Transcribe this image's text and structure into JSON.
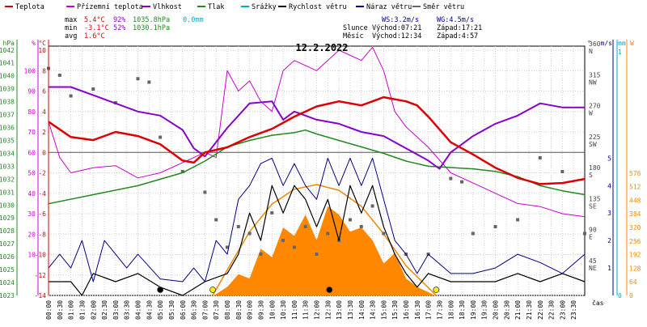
{
  "chart_data": {
    "type": "line",
    "title": "12.2.2022",
    "time_label": "čas",
    "legend": [
      {
        "label": "Teplota",
        "color": "#dd0000"
      },
      {
        "label": "Přízemní teplota",
        "color": "#cc00cc"
      },
      {
        "label": "Vlhkost",
        "color": "#8800cc"
      },
      {
        "label": "Tlak",
        "color": "#228822"
      },
      {
        "label": "Srážky",
        "color": "#00aacc"
      },
      {
        "label": "Rychlost větru",
        "color": "#000000"
      },
      {
        "label": "Náraz větru",
        "color": "#000088"
      },
      {
        "label": "Směr větru",
        "color": "#666666"
      }
    ],
    "stats": {
      "max_label": "max",
      "max_temp": "5.4°C",
      "max_hum": "92%",
      "max_press": "1035.8hPa",
      "max_rain": "0.0mm",
      "min_label": "min",
      "min_temp": "-3.1°C",
      "min_hum": "52%",
      "min_press": "1030.1hPa",
      "avg_label": "avg",
      "avg_temp": "1.6°C"
    },
    "wind_info": {
      "ws": "WS:3.2m/s",
      "wg": "WG:4.5m/s"
    },
    "sun_info": {
      "label": "Slunce",
      "rise": "Východ:07:21",
      "set": "Západ:17:21"
    },
    "moon_info": {
      "label": "Měsíc",
      "rise": "Východ:12:34",
      "set": "Západ:4:57"
    },
    "axes": {
      "hpa": {
        "label": "hPa",
        "ticks": [
          1023,
          1024,
          1025,
          1026,
          1027,
          1028,
          1029,
          1030,
          1031,
          1032,
          1033,
          1034,
          1035,
          1036,
          1037,
          1038,
          1039,
          1040,
          1041,
          1042
        ]
      },
      "pct": {
        "label": "%",
        "ticks": [
          10,
          20,
          30,
          40,
          50,
          60,
          70,
          80,
          90,
          100
        ]
      },
      "degc": {
        "label": "°C",
        "ticks": [
          -14,
          -12,
          -10,
          -8,
          -6,
          -4,
          -2,
          0,
          2,
          4,
          6,
          8,
          10
        ],
        "range": [
          -14,
          10.4
        ]
      },
      "deg": {
        "label": "°",
        "ticks": [
          {
            "v": 45,
            "l": "45",
            "c": "NE"
          },
          {
            "v": 90,
            "l": "90",
            "c": "E"
          },
          {
            "v": 135,
            "l": "135",
            "c": "SE"
          },
          {
            "v": 180,
            "l": "180",
            "c": "S"
          },
          {
            "v": 225,
            "l": "225",
            "c": "SW"
          },
          {
            "v": 270,
            "l": "270",
            "c": "W"
          },
          {
            "v": 315,
            "l": "315",
            "c": "NW"
          },
          {
            "v": 360,
            "l": "360",
            "c": "N"
          }
        ]
      },
      "ms": {
        "label": "m/s",
        "ticks": [
          1,
          2,
          3,
          4,
          5
        ]
      },
      "mm": {
        "label": "mm",
        "ticks": [
          "0",
          "1"
        ]
      },
      "w": {
        "label": "W",
        "ticks": [
          0,
          64,
          128,
          192,
          256,
          320,
          384,
          448,
          512,
          576
        ]
      },
      "time_ticks": [
        "00:00",
        "00:30",
        "01:00",
        "01:30",
        "02:00",
        "02:30",
        "03:00",
        "03:30",
        "04:00",
        "04:30",
        "05:00",
        "05:30",
        "06:00",
        "06:30",
        "07:00",
        "07:30",
        "08:00",
        "08:30",
        "09:00",
        "09:30",
        "10:00",
        "10:30",
        "11:00",
        "11:30",
        "12:00",
        "12:30",
        "13:00",
        "13:30",
        "14:00",
        "14:30",
        "15:00",
        "15:30",
        "16:00",
        "16:30",
        "17:00",
        "17:30",
        "18:00",
        "18:30",
        "19:00",
        "19:30",
        "20:00",
        "20:30",
        "21:00",
        "21:30",
        "22:00",
        "22:30",
        "23:00",
        "23:30"
      ]
    },
    "series": [
      {
        "name": "Teplota",
        "unit": "°C",
        "color": "#dd0000",
        "points": [
          [
            0,
            3
          ],
          [
            1,
            1.5
          ],
          [
            2,
            1.2
          ],
          [
            3,
            2
          ],
          [
            4,
            1.6
          ],
          [
            5,
            0.8
          ],
          [
            6,
            -0.8
          ],
          [
            6.5,
            -1
          ],
          [
            7,
            0
          ],
          [
            8,
            0.5
          ],
          [
            9,
            1.5
          ],
          [
            10,
            2.3
          ],
          [
            11,
            3.5
          ],
          [
            12,
            4.5
          ],
          [
            13,
            5
          ],
          [
            14,
            4.6
          ],
          [
            14.5,
            5
          ],
          [
            15,
            5.4
          ],
          [
            16,
            5
          ],
          [
            16.5,
            4.6
          ],
          [
            17,
            3.5
          ],
          [
            18,
            1
          ],
          [
            19,
            -0.2
          ],
          [
            20,
            -1.5
          ],
          [
            21,
            -2.5
          ],
          [
            22,
            -3.1
          ],
          [
            23,
            -3
          ],
          [
            24,
            -2.6
          ]
        ]
      },
      {
        "name": "Přízemní teplota",
        "unit": "°C",
        "color": "#cc00cc",
        "points": [
          [
            0,
            3
          ],
          [
            0.5,
            -0.5
          ],
          [
            1,
            -2
          ],
          [
            2,
            -1.5
          ],
          [
            3,
            -1.3
          ],
          [
            4,
            -2.5
          ],
          [
            5,
            -2
          ],
          [
            6,
            -1
          ],
          [
            7,
            0
          ],
          [
            7.5,
            -0.5
          ],
          [
            8,
            8
          ],
          [
            8.5,
            6
          ],
          [
            9,
            7
          ],
          [
            9.5,
            5
          ],
          [
            10,
            4
          ],
          [
            10.5,
            8
          ],
          [
            11,
            9
          ],
          [
            12,
            8
          ],
          [
            13,
            10
          ],
          [
            14,
            9
          ],
          [
            14.5,
            10.3
          ],
          [
            15,
            8
          ],
          [
            15.5,
            4
          ],
          [
            16,
            2.5
          ],
          [
            17,
            0.5
          ],
          [
            18,
            -2
          ],
          [
            19,
            -3
          ],
          [
            20,
            -4
          ],
          [
            21,
            -5
          ],
          [
            22,
            -5.3
          ],
          [
            23,
            -6
          ],
          [
            24,
            -6.3
          ]
        ]
      },
      {
        "name": "Vlhkost",
        "unit": "%",
        "color": "#8800cc",
        "points": [
          [
            0,
            92
          ],
          [
            1,
            92
          ],
          [
            2,
            88
          ],
          [
            3,
            84
          ],
          [
            4,
            80
          ],
          [
            5,
            78
          ],
          [
            6,
            71
          ],
          [
            6.5,
            62
          ],
          [
            7,
            58
          ],
          [
            8,
            72
          ],
          [
            9,
            84
          ],
          [
            10,
            85
          ],
          [
            10.5,
            76
          ],
          [
            11,
            80
          ],
          [
            12,
            76
          ],
          [
            13,
            74
          ],
          [
            14,
            70
          ],
          [
            15,
            68
          ],
          [
            16,
            62
          ],
          [
            17,
            56
          ],
          [
            17.5,
            52
          ],
          [
            18,
            60
          ],
          [
            19,
            68
          ],
          [
            20,
            74
          ],
          [
            21,
            78
          ],
          [
            22,
            84
          ],
          [
            23,
            82
          ],
          [
            24,
            82
          ]
        ]
      },
      {
        "name": "Tlak",
        "unit": "hPa",
        "color": "#228822",
        "points": [
          [
            0,
            1030.1
          ],
          [
            2,
            1030.8
          ],
          [
            4,
            1031.5
          ],
          [
            6,
            1032.5
          ],
          [
            7,
            1033.4
          ],
          [
            8,
            1034.5
          ],
          [
            9,
            1035
          ],
          [
            10,
            1035.4
          ],
          [
            11,
            1035.6
          ],
          [
            11.5,
            1035.8
          ],
          [
            12,
            1035.5
          ],
          [
            13,
            1035
          ],
          [
            14,
            1034.5
          ],
          [
            15,
            1034
          ],
          [
            16,
            1033.4
          ],
          [
            17,
            1033
          ],
          [
            18,
            1032.9
          ],
          [
            19,
            1032.8
          ],
          [
            20,
            1032.6
          ],
          [
            21,
            1032.2
          ],
          [
            22,
            1031.5
          ],
          [
            23,
            1031.1
          ],
          [
            24,
            1030.8
          ]
        ]
      },
      {
        "name": "Rychlost větru",
        "unit": "m/s",
        "color": "#000000",
        "points": [
          [
            0,
            0.5
          ],
          [
            1,
            0.5
          ],
          [
            1.5,
            0
          ],
          [
            2,
            0.8
          ],
          [
            3,
            0.5
          ],
          [
            4,
            0.8
          ],
          [
            5,
            0.3
          ],
          [
            6,
            0
          ],
          [
            7,
            0.5
          ],
          [
            8,
            0.8
          ],
          [
            8.5,
            1.5
          ],
          [
            9,
            3
          ],
          [
            9.5,
            2
          ],
          [
            10,
            4
          ],
          [
            10.5,
            3
          ],
          [
            11,
            4
          ],
          [
            11.5,
            3.5
          ],
          [
            12,
            2.5
          ],
          [
            12.5,
            3.5
          ],
          [
            13,
            2
          ],
          [
            13.5,
            4
          ],
          [
            14,
            3
          ],
          [
            14.5,
            4
          ],
          [
            15,
            2.5
          ],
          [
            15.5,
            1.5
          ],
          [
            16,
            0.8
          ],
          [
            16.5,
            0.3
          ],
          [
            17,
            0.8
          ],
          [
            18,
            0.5
          ],
          [
            19,
            0.5
          ],
          [
            20,
            0.5
          ],
          [
            21,
            0.8
          ],
          [
            22,
            0.5
          ],
          [
            23,
            0.8
          ],
          [
            24,
            0.5
          ]
        ]
      },
      {
        "name": "Náraz větru",
        "unit": "m/s",
        "color": "#000088",
        "points": [
          [
            0,
            1
          ],
          [
            0.5,
            1.5
          ],
          [
            1,
            1
          ],
          [
            1.5,
            2
          ],
          [
            2,
            0.5
          ],
          [
            2.5,
            2
          ],
          [
            3,
            1.5
          ],
          [
            3.5,
            1
          ],
          [
            4,
            1.5
          ],
          [
            5,
            0.6
          ],
          [
            6,
            0.5
          ],
          [
            6.5,
            1
          ],
          [
            7,
            0.5
          ],
          [
            7.5,
            2
          ],
          [
            8,
            1.5
          ],
          [
            8.5,
            3.5
          ],
          [
            9,
            4
          ],
          [
            9.5,
            4.8
          ],
          [
            10,
            5
          ],
          [
            10.5,
            4
          ],
          [
            11,
            4.8
          ],
          [
            11.5,
            4
          ],
          [
            12,
            3.5
          ],
          [
            12.5,
            5
          ],
          [
            13,
            4
          ],
          [
            13.5,
            5
          ],
          [
            14,
            4
          ],
          [
            14.5,
            5
          ],
          [
            15,
            3.5
          ],
          [
            15.5,
            2
          ],
          [
            16,
            1.5
          ],
          [
            16.5,
            0.8
          ],
          [
            17,
            1.5
          ],
          [
            18,
            0.8
          ],
          [
            19,
            0.8
          ],
          [
            20,
            1
          ],
          [
            21,
            1.5
          ],
          [
            22,
            1.2
          ],
          [
            23,
            0.8
          ],
          [
            24,
            1.5
          ]
        ]
      },
      {
        "name": "Směr větru",
        "unit": "°",
        "color": "#666666",
        "points": [
          [
            0,
            330
          ],
          [
            0.5,
            320
          ],
          [
            1,
            290
          ],
          [
            2,
            300
          ],
          [
            3,
            280
          ],
          [
            4,
            315
          ],
          [
            4.5,
            310
          ],
          [
            5,
            230
          ],
          [
            6,
            180
          ],
          [
            7,
            150
          ],
          [
            7.5,
            110
          ],
          [
            8,
            70
          ],
          [
            8.5,
            100
          ],
          [
            9,
            90
          ],
          [
            9.5,
            60
          ],
          [
            10,
            120
          ],
          [
            10.5,
            80
          ],
          [
            11,
            70
          ],
          [
            11.5,
            100
          ],
          [
            12,
            60
          ],
          [
            12.5,
            90
          ],
          [
            13,
            80
          ],
          [
            13.5,
            110
          ],
          [
            14,
            100
          ],
          [
            14.5,
            130
          ],
          [
            15,
            90
          ],
          [
            16,
            60
          ],
          [
            17,
            60
          ],
          [
            18,
            170
          ],
          [
            18.5,
            165
          ],
          [
            19,
            90
          ],
          [
            20,
            100
          ],
          [
            21,
            110
          ],
          [
            22,
            200
          ],
          [
            23,
            180
          ],
          [
            24,
            90
          ]
        ]
      }
    ],
    "solar_radiation": {
      "name": "Sluneční záření",
      "unit": "W",
      "color": "#ff8800",
      "points": [
        [
          7.4,
          0
        ],
        [
          8,
          40
        ],
        [
          8.5,
          100
        ],
        [
          9,
          80
        ],
        [
          9.5,
          220
        ],
        [
          10,
          180
        ],
        [
          10.5,
          320
        ],
        [
          11,
          280
        ],
        [
          11.5,
          380
        ],
        [
          12,
          260
        ],
        [
          12.5,
          420
        ],
        [
          13,
          380
        ],
        [
          13.5,
          300
        ],
        [
          14,
          320
        ],
        [
          14.5,
          260
        ],
        [
          15,
          150
        ],
        [
          15.5,
          200
        ],
        [
          16,
          80
        ],
        [
          16.5,
          40
        ],
        [
          17.3,
          0
        ]
      ]
    },
    "theoretical_radiation": {
      "unit": "W",
      "color": "#ee8800",
      "points": [
        [
          7.35,
          0
        ],
        [
          8,
          120
        ],
        [
          9,
          300
        ],
        [
          10,
          430
        ],
        [
          11,
          500
        ],
        [
          12,
          522
        ],
        [
          13,
          495
        ],
        [
          14,
          420
        ],
        [
          15,
          290
        ],
        [
          16,
          140
        ],
        [
          17.35,
          0
        ]
      ]
    }
  }
}
